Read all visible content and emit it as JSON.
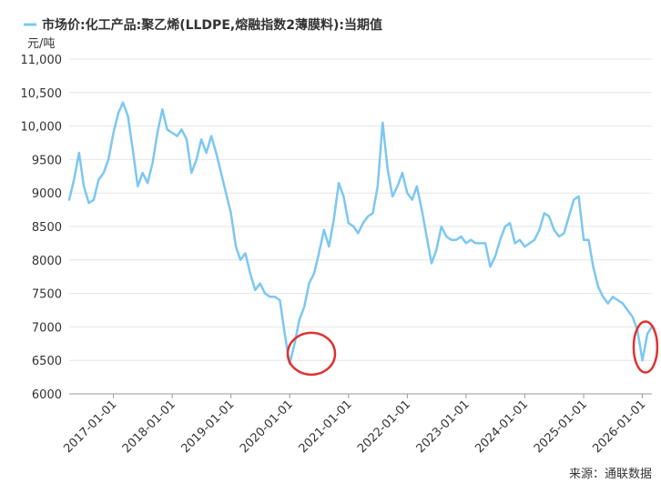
{
  "chart_data": {
    "type": "line",
    "title": "",
    "legend": {
      "position": "top-left",
      "entries": [
        "市场价:化工产品:聚乙烯(LLDPE,熔融指数2薄膜料):当期值"
      ]
    },
    "ylabel": "元/吨",
    "xlabel": "",
    "ylim": [
      6000,
      11000
    ],
    "xlim": [
      "2016-04-01",
      "2026-03-01"
    ],
    "yticks": [
      "6000",
      "6500",
      "7000",
      "7500",
      "8000",
      "8500",
      "9000",
      "9500",
      "10,000",
      "10,500",
      "11,000"
    ],
    "ytick_values": [
      6000,
      6500,
      7000,
      7500,
      8000,
      8500,
      9000,
      9500,
      10000,
      10500,
      11000
    ],
    "xticks": [
      "2017-01-01",
      "2018-01-01",
      "2019-01-01",
      "2020-01-01",
      "2021-01-01",
      "2022-01-01",
      "2023-01-01",
      "2024-01-01",
      "2025-01-01",
      "2026-01-01"
    ],
    "grid": true,
    "series": [
      {
        "name": "市场价:化工产品:聚乙烯(LLDPE,熔融指数2薄膜料):当期值",
        "color": "#7cc7f2",
        "x": [
          "2016-04-01",
          "2016-05-01",
          "2016-06-01",
          "2016-07-01",
          "2016-08-01",
          "2016-09-01",
          "2016-10-01",
          "2016-11-01",
          "2016-12-01",
          "2017-01-01",
          "2017-02-01",
          "2017-03-01",
          "2017-04-01",
          "2017-05-01",
          "2017-06-01",
          "2017-07-01",
          "2017-08-01",
          "2017-09-01",
          "2017-10-01",
          "2017-11-01",
          "2017-12-01",
          "2018-01-01",
          "2018-02-01",
          "2018-03-01",
          "2018-04-01",
          "2018-05-01",
          "2018-06-01",
          "2018-07-01",
          "2018-08-01",
          "2018-09-01",
          "2018-10-01",
          "2018-11-01",
          "2018-12-01",
          "2019-01-01",
          "2019-02-01",
          "2019-03-01",
          "2019-04-01",
          "2019-05-01",
          "2019-06-01",
          "2019-07-01",
          "2019-08-01",
          "2019-09-01",
          "2019-10-01",
          "2019-11-01",
          "2019-12-01",
          "2020-01-01",
          "2020-02-01",
          "2020-03-01",
          "2020-04-01",
          "2020-05-01",
          "2020-06-01",
          "2020-07-01",
          "2020-08-01",
          "2020-09-01",
          "2020-10-01",
          "2020-11-01",
          "2020-12-01",
          "2021-01-01",
          "2021-02-01",
          "2021-03-01",
          "2021-04-01",
          "2021-05-01",
          "2021-06-01",
          "2021-07-01",
          "2021-08-01",
          "2021-09-01",
          "2021-10-01",
          "2021-11-01",
          "2021-12-01",
          "2022-01-01",
          "2022-02-01",
          "2022-03-01",
          "2022-04-01",
          "2022-05-01",
          "2022-06-01",
          "2022-07-01",
          "2022-08-01",
          "2022-09-01",
          "2022-10-01",
          "2022-11-01",
          "2022-12-01",
          "2023-01-01",
          "2023-02-01",
          "2023-03-01",
          "2023-04-01",
          "2023-05-01",
          "2023-06-01",
          "2023-07-01",
          "2023-08-01",
          "2023-09-01",
          "2023-10-01",
          "2023-11-01",
          "2023-12-01",
          "2024-01-01",
          "2024-02-01",
          "2024-03-01",
          "2024-04-01",
          "2024-05-01",
          "2024-06-01",
          "2024-07-01",
          "2024-08-01",
          "2024-09-01",
          "2024-10-01",
          "2024-11-01",
          "2024-12-01",
          "2025-01-01",
          "2025-02-01",
          "2025-03-01",
          "2025-04-01",
          "2025-05-01",
          "2025-06-01",
          "2025-07-01",
          "2025-08-01",
          "2025-09-01",
          "2025-10-01",
          "2025-11-01",
          "2025-12-01",
          "2026-01-01",
          "2026-02-01",
          "2026-03-01"
        ],
        "values": [
          8900,
          9200,
          9600,
          9100,
          8850,
          8900,
          9200,
          9300,
          9500,
          9900,
          10200,
          10350,
          10150,
          9650,
          9100,
          9300,
          9150,
          9450,
          9900,
          10250,
          9950,
          9900,
          9850,
          9950,
          9800,
          9300,
          9500,
          9800,
          9600,
          9850,
          9600,
          9300,
          9000,
          8700,
          8200,
          8000,
          8100,
          7800,
          7550,
          7650,
          7500,
          7450,
          7450,
          7400,
          6900,
          6450,
          6750,
          7100,
          7300,
          7650,
          7800,
          8100,
          8450,
          8200,
          8600,
          9150,
          8950,
          8550,
          8500,
          8400,
          8550,
          8650,
          8700,
          9100,
          10050,
          9350,
          8950,
          9100,
          9300,
          9000,
          8900,
          9100,
          8750,
          8350,
          7950,
          8150,
          8500,
          8350,
          8300,
          8300,
          8350,
          8250,
          8300,
          8250,
          8250,
          8250,
          7900,
          8050,
          8300,
          8500,
          8550,
          8250,
          8300,
          8200,
          8250,
          8300,
          8450,
          8700,
          8650,
          8450,
          8350,
          8400,
          8650,
          8900,
          8950,
          8300,
          8300,
          7900,
          7600,
          7450,
          7350,
          7450,
          7400,
          7350,
          7250,
          7150,
          6950,
          6500,
          6900,
          7000
        ]
      }
    ],
    "annotations": [
      {
        "type": "circle",
        "center_x": "2020-05-15",
        "center_y": 6600,
        "color": "#e03131"
      },
      {
        "type": "circle",
        "center_x": "2026-01-20",
        "center_y": 6700,
        "color": "#e03131"
      }
    ],
    "source": "来源：通联数据"
  }
}
